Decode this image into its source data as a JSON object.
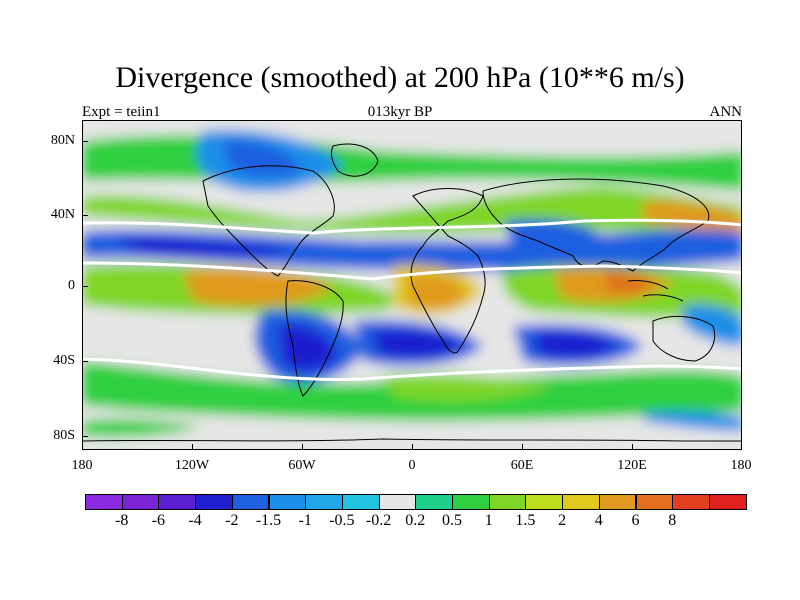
{
  "title": "Divergence (smoothed) at 200 hPa (10**6 m/s)",
  "left_subtitle": "Expt = teiin1",
  "center_subtitle": "013kyr BP",
  "right_subtitle": "ANN",
  "lat_labels": [
    "80N",
    "40N",
    "0",
    "40S",
    "80S"
  ],
  "lon_labels": [
    "180",
    "120W",
    "60W",
    "0",
    "60E",
    "120E",
    "180"
  ],
  "colorbar": {
    "colors": [
      "#8a2be2",
      "#7b24d6",
      "#5a1fd0",
      "#1f1fcf",
      "#1f5fe0",
      "#1f8fe8",
      "#1fa7e8",
      "#22c3e0",
      "#e6e6e6",
      "#1fd08a",
      "#2fcf3f",
      "#7fd628",
      "#bfdc1f",
      "#e0c81f",
      "#e09a1f",
      "#e0701f",
      "#e0401f",
      "#e01f1f"
    ],
    "labels": [
      "-8",
      "-6",
      "-4",
      "-2",
      "-1.5",
      "-1",
      "-0.5",
      "-0.2",
      "0.2",
      "0.5",
      "1",
      "1.5",
      "2",
      "4",
      "6",
      "8"
    ]
  }
}
